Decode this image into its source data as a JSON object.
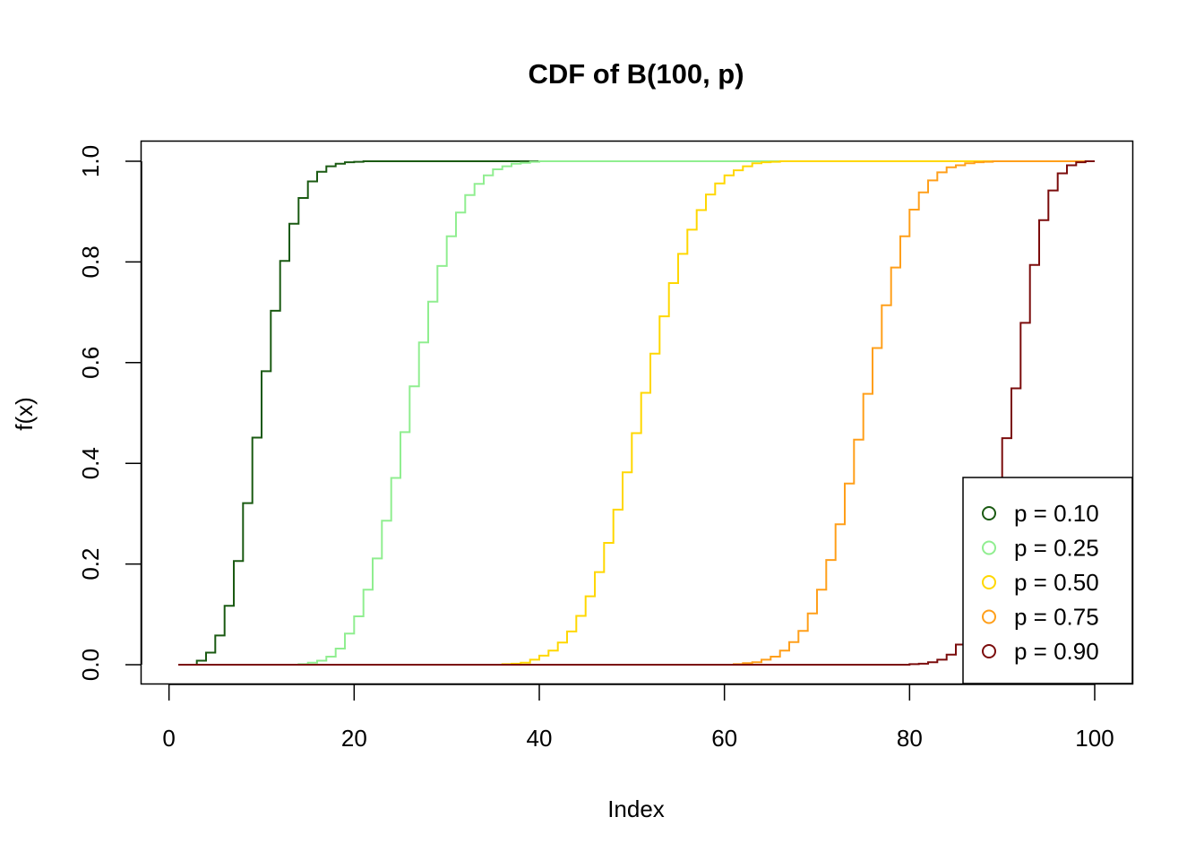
{
  "chart_data": {
    "type": "line",
    "step": true,
    "title": "CDF of B(100, p)",
    "xlabel": "Index",
    "ylabel": "f(x)",
    "xlim": [
      1,
      100
    ],
    "ylim": [
      0,
      1
    ],
    "xticks": [
      0,
      20,
      40,
      60,
      80,
      100
    ],
    "xtick_labels": [
      "0",
      "20",
      "40",
      "60",
      "80",
      "100"
    ],
    "yticks": [
      0,
      0.2,
      0.4,
      0.6,
      0.8,
      1
    ],
    "ytick_labels": [
      "0.0",
      "0.2",
      "0.4",
      "0.6",
      "0.8",
      "1.0"
    ],
    "grid": false,
    "legend_position": "bottom-right",
    "x": [
      1,
      2,
      3,
      4,
      5,
      6,
      7,
      8,
      9,
      10,
      11,
      12,
      13,
      14,
      15,
      16,
      17,
      18,
      19,
      20,
      21,
      22,
      23,
      24,
      25,
      26,
      27,
      28,
      29,
      30,
      31,
      32,
      33,
      34,
      35,
      36,
      37,
      38,
      39,
      40,
      41,
      42,
      43,
      44,
      45,
      46,
      47,
      48,
      49,
      50,
      51,
      52,
      53,
      54,
      55,
      56,
      57,
      58,
      59,
      60,
      61,
      62,
      63,
      64,
      65,
      66,
      67,
      68,
      69,
      70,
      71,
      72,
      73,
      74,
      75,
      76,
      77,
      78,
      79,
      80,
      81,
      82,
      83,
      84,
      85,
      86,
      87,
      88,
      89,
      90,
      91,
      92,
      93,
      94,
      95,
      96,
      97,
      98,
      99,
      100
    ],
    "series": [
      {
        "name": "p = 0.10",
        "color": "#1a5a12",
        "values": [
          0,
          0,
          0.008,
          0.024,
          0.058,
          0.117,
          0.206,
          0.321,
          0.451,
          0.583,
          0.703,
          0.802,
          0.876,
          0.927,
          0.96,
          0.979,
          0.99,
          0.995,
          0.998,
          0.999,
          1,
          1,
          1,
          1,
          1,
          1,
          1,
          1,
          1,
          1,
          1,
          1,
          1,
          1,
          1,
          1,
          1,
          1,
          1,
          1,
          1,
          1,
          1,
          1,
          1,
          1,
          1,
          1,
          1,
          1,
          1,
          1,
          1,
          1,
          1,
          1,
          1,
          1,
          1,
          1,
          1,
          1,
          1,
          1,
          1,
          1,
          1,
          1,
          1,
          1,
          1,
          1,
          1,
          1,
          1,
          1,
          1,
          1,
          1,
          1,
          1,
          1,
          1,
          1,
          1,
          1,
          1,
          1,
          1,
          1,
          1,
          1,
          1,
          1,
          1,
          1,
          1,
          1,
          1,
          1
        ]
      },
      {
        "name": "p = 0.25",
        "color": "#90ee90",
        "values": [
          0,
          0,
          0,
          0,
          0,
          0,
          0,
          0,
          0,
          0,
          0,
          0,
          0,
          0.001,
          0.004,
          0.008,
          0.016,
          0.032,
          0.062,
          0.096,
          0.149,
          0.211,
          0.286,
          0.371,
          0.462,
          0.553,
          0.64,
          0.721,
          0.792,
          0.851,
          0.898,
          0.933,
          0.955,
          0.972,
          0.984,
          0.99,
          0.995,
          0.997,
          0.999,
          1,
          1,
          1,
          1,
          1,
          1,
          1,
          1,
          1,
          1,
          1,
          1,
          1,
          1,
          1,
          1,
          1,
          1,
          1,
          1,
          1,
          1,
          1,
          1,
          1,
          1,
          1,
          1,
          1,
          1,
          1,
          1,
          1,
          1,
          1,
          1,
          1,
          1,
          1,
          1,
          1,
          1,
          1,
          1,
          1,
          1,
          1,
          1,
          1,
          1,
          1,
          1,
          1,
          1,
          1,
          1,
          1,
          1,
          1,
          1,
          1
        ]
      },
      {
        "name": "p = 0.50",
        "color": "#ffd700",
        "values": [
          0,
          0,
          0,
          0,
          0,
          0,
          0,
          0,
          0,
          0,
          0,
          0,
          0,
          0,
          0,
          0,
          0,
          0,
          0,
          0,
          0,
          0,
          0,
          0,
          0,
          0,
          0,
          0,
          0,
          0,
          0,
          0,
          0,
          0,
          0,
          0.001,
          0.002,
          0.004,
          0.01,
          0.018,
          0.028,
          0.044,
          0.066,
          0.097,
          0.136,
          0.184,
          0.242,
          0.308,
          0.382,
          0.46,
          0.54,
          0.618,
          0.692,
          0.758,
          0.816,
          0.864,
          0.903,
          0.934,
          0.956,
          0.972,
          0.982,
          0.99,
          0.996,
          0.998,
          0.999,
          1,
          1,
          1,
          1,
          1,
          1,
          1,
          1,
          1,
          1,
          1,
          1,
          1,
          1,
          1,
          1,
          1,
          1,
          1,
          1,
          1,
          1,
          1,
          1,
          1,
          1,
          1,
          1,
          1,
          1,
          1,
          1,
          1,
          1,
          1
        ]
      },
      {
        "name": "p = 0.75",
        "color": "#ff9f1a",
        "values": [
          0,
          0,
          0,
          0,
          0,
          0,
          0,
          0,
          0,
          0,
          0,
          0,
          0,
          0,
          0,
          0,
          0,
          0,
          0,
          0,
          0,
          0,
          0,
          0,
          0,
          0,
          0,
          0,
          0,
          0,
          0,
          0,
          0,
          0,
          0,
          0,
          0,
          0,
          0,
          0,
          0,
          0,
          0,
          0,
          0,
          0,
          0,
          0,
          0,
          0,
          0,
          0,
          0,
          0,
          0,
          0,
          0,
          0,
          0,
          0,
          0.001,
          0.003,
          0.005,
          0.01,
          0.016,
          0.028,
          0.045,
          0.067,
          0.102,
          0.149,
          0.208,
          0.279,
          0.36,
          0.447,
          0.538,
          0.629,
          0.714,
          0.789,
          0.851,
          0.904,
          0.938,
          0.962,
          0.978,
          0.988,
          0.992,
          0.996,
          0.998,
          0.999,
          1,
          1,
          1,
          1,
          1,
          1,
          1,
          1,
          1,
          1,
          1,
          1
        ]
      },
      {
        "name": "p = 0.90",
        "color": "#7b0c0c",
        "values": [
          0,
          0,
          0,
          0,
          0,
          0,
          0,
          0,
          0,
          0,
          0,
          0,
          0,
          0,
          0,
          0,
          0,
          0,
          0,
          0,
          0,
          0,
          0,
          0,
          0,
          0,
          0,
          0,
          0,
          0,
          0,
          0,
          0,
          0,
          0,
          0,
          0,
          0,
          0,
          0,
          0,
          0,
          0,
          0,
          0,
          0,
          0,
          0,
          0,
          0,
          0,
          0,
          0,
          0,
          0,
          0,
          0,
          0,
          0,
          0,
          0,
          0,
          0,
          0,
          0,
          0,
          0,
          0,
          0,
          0,
          0,
          0,
          0,
          0,
          0,
          0,
          0,
          0,
          0,
          0.001,
          0.002,
          0.005,
          0.01,
          0.02,
          0.04,
          0.073,
          0.121,
          0.206,
          0.32,
          0.45,
          0.549,
          0.679,
          0.794,
          0.883,
          0.942,
          0.976,
          0.992,
          0.998,
          1,
          1
        ]
      }
    ]
  }
}
